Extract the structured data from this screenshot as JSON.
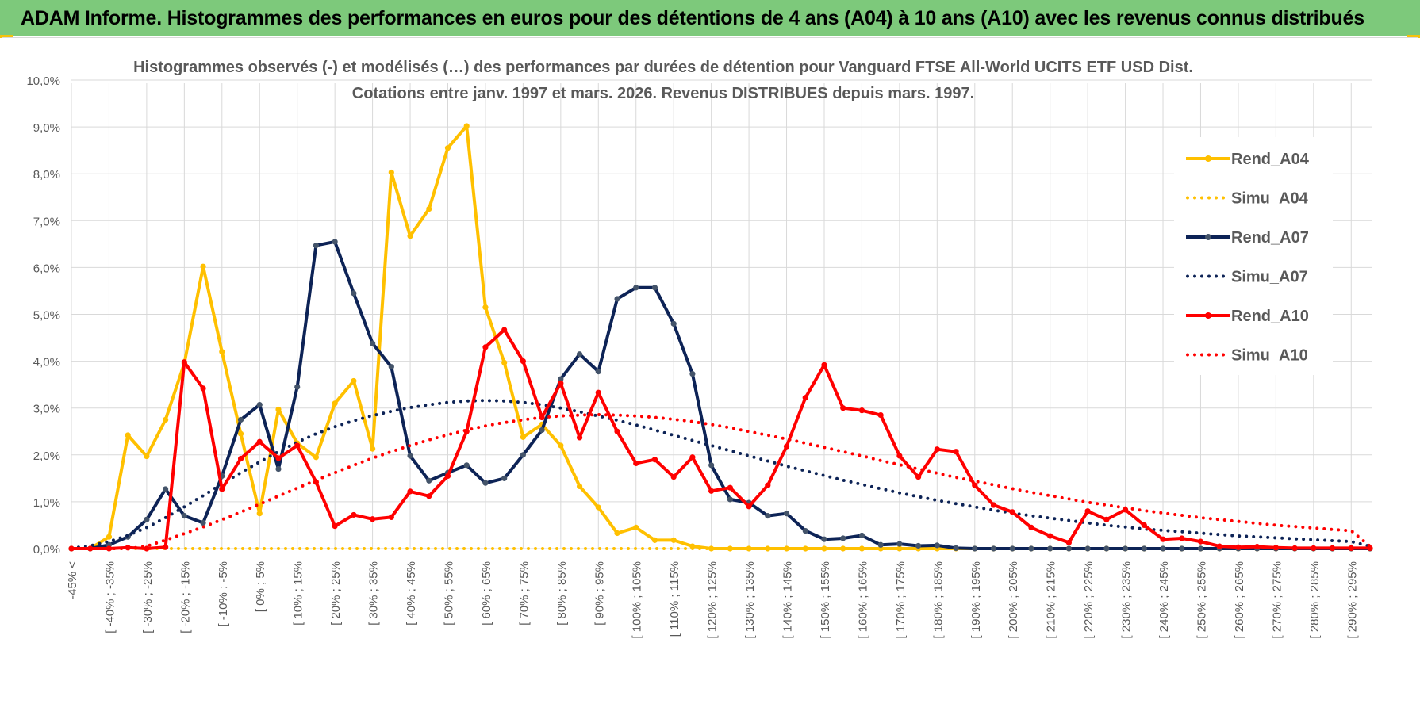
{
  "banner": {
    "title": "ADAM Informe. Histogrammes des performances en euros pour des détentions de 4 ans (A04) à 10 ans (A10) avec les revenus connus distribués"
  },
  "chart_data": {
    "type": "line",
    "title_line1": "Histogrammes observés (-) et modélisés (…) des performances par durées de détention pour Vanguard FTSE  All-World UCITS ETF USD Dist.",
    "title_line2": "Cotations entre janv. 1997 et mars. 2026. Revenus DISTRIBUES depuis mars. 1997.",
    "ylim": [
      0,
      10
    ],
    "ytick_values": [
      0,
      1,
      2,
      3,
      4,
      5,
      6,
      7,
      8,
      9,
      10
    ],
    "ytick_labels": [
      "0,0%",
      "1,0%",
      "2,0%",
      "3,0%",
      "4,0%",
      "5,0%",
      "6,0%",
      "7,0%",
      "8,0%",
      "9,0%",
      "10,0%"
    ],
    "x_labels": [
      "-45% <",
      "[ -40% ; -35%",
      "[ -30% ; -25%",
      "[ -20% ; -15%",
      "[ -10% ; -5%",
      "[ 0% ; 5%",
      "[ 10% ; 15%",
      "[ 20% ; 25%",
      "[ 30% ; 35%",
      "[ 40% ; 45%",
      "[ 50% ; 55%",
      "[ 60% ; 65%",
      "[ 70% ; 75%",
      "[ 80% ; 85%",
      "[ 90% ; 95%",
      "[ 100% ; 105%",
      "[ 110% ; 115%",
      "[ 120% ; 125%",
      "[ 130% ; 135%",
      "[ 140% ; 145%",
      "[ 150% ; 155%",
      "[ 160% ; 165%",
      "[ 170% ; 175%",
      "[ 180% ; 185%",
      "[ 190% ; 195%",
      "[ 200% ; 205%",
      "[ 210% ; 215%",
      "[ 220% ; 225%",
      "[ 230% ; 235%",
      "[ 240% ; 245%",
      "[ 250% ; 255%",
      "[ 260% ; 265%",
      "[ 270% ; 275%",
      "[ 280% ; 285%",
      "[ 290% ; 295%"
    ],
    "x_count": 70,
    "series": [
      {
        "name": "Rend_A04",
        "style": "solid",
        "color": "#ffc000",
        "values": [
          0,
          0,
          0.25,
          2.42,
          1.97,
          2.75,
          3.95,
          6.02,
          4.2,
          2.45,
          0.75,
          2.97,
          2.25,
          1.95,
          3.1,
          3.58,
          2.13,
          8.03,
          6.67,
          7.25,
          8.55,
          9.02,
          5.15,
          3.97,
          2.38,
          2.65,
          2.2,
          1.33,
          0.88,
          0.33,
          0.45,
          0.18,
          0.18,
          0.05,
          0,
          0,
          0,
          0,
          0,
          0,
          0,
          0,
          0,
          0,
          0,
          0,
          0,
          0,
          0,
          0,
          0,
          0,
          0,
          0,
          0,
          0,
          0,
          0,
          0,
          0,
          0,
          0,
          0,
          0,
          0,
          0,
          0,
          0,
          0,
          0
        ]
      },
      {
        "name": "Simu_A04",
        "style": "dotted",
        "color": "#ffc000",
        "values": [
          0,
          0,
          0,
          0,
          0,
          0,
          0,
          0,
          0,
          0,
          0,
          0,
          0,
          0,
          0,
          0,
          0,
          0,
          0,
          0,
          0,
          0,
          0,
          0,
          0,
          0,
          0,
          0,
          0,
          0,
          0,
          0,
          0,
          0,
          0,
          0,
          0,
          0,
          0,
          0,
          0,
          0,
          0,
          0,
          0,
          0,
          0,
          0,
          0,
          0,
          0,
          0,
          0,
          0,
          0,
          0,
          0,
          0,
          0,
          0,
          0,
          0,
          0,
          0,
          0,
          0,
          0,
          0,
          0,
          0
        ]
      },
      {
        "name": "Rend_A07",
        "style": "solid",
        "color": "#0d2356",
        "values": [
          0,
          0,
          0.08,
          0.25,
          0.62,
          1.27,
          0.7,
          0.55,
          1.55,
          2.75,
          3.07,
          1.7,
          3.45,
          6.47,
          6.55,
          5.45,
          4.38,
          3.88,
          1.98,
          1.45,
          1.62,
          1.78,
          1.4,
          1.5,
          2.0,
          2.53,
          3.62,
          4.15,
          3.78,
          5.33,
          5.57,
          5.57,
          4.8,
          3.73,
          1.78,
          1.05,
          0.98,
          0.7,
          0.75,
          0.38,
          0.2,
          0.22,
          0.28,
          0.08,
          0.1,
          0.06,
          0.07,
          0.01,
          0,
          0,
          0,
          0,
          0,
          0,
          0,
          0,
          0,
          0,
          0,
          0,
          0,
          0,
          0,
          0,
          0,
          0,
          0,
          0,
          0,
          0
        ]
      },
      {
        "name": "Simu_A07",
        "style": "dotted",
        "color": "#0d2356",
        "values": [
          0.01,
          0.06,
          0.15,
          0.28,
          0.45,
          0.66,
          0.89,
          1.13,
          1.38,
          1.62,
          1.85,
          2.07,
          2.27,
          2.45,
          2.6,
          2.73,
          2.84,
          2.93,
          3.01,
          3.07,
          3.12,
          3.15,
          3.16,
          3.15,
          3.12,
          3.07,
          3.0,
          2.92,
          2.83,
          2.74,
          2.64,
          2.53,
          2.42,
          2.31,
          2.2,
          2.09,
          1.98,
          1.87,
          1.76,
          1.66,
          1.56,
          1.46,
          1.37,
          1.28,
          1.19,
          1.11,
          1.03,
          0.96,
          0.89,
          0.82,
          0.76,
          0.7,
          0.65,
          0.6,
          0.55,
          0.5,
          0.46,
          0.42,
          0.39,
          0.36,
          0.33,
          0.3,
          0.27,
          0.25,
          0.23,
          0.21,
          0.19,
          0.17,
          0.15,
          0.05
        ]
      },
      {
        "name": "Rend_A10",
        "style": "solid",
        "color": "#ff0000",
        "values": [
          0,
          0,
          0,
          0.02,
          0,
          0.03,
          3.98,
          3.42,
          1.27,
          1.92,
          2.28,
          1.93,
          2.2,
          1.42,
          0.48,
          0.72,
          0.63,
          0.67,
          1.22,
          1.12,
          1.55,
          2.5,
          4.3,
          4.67,
          4.0,
          2.8,
          3.53,
          2.37,
          3.33,
          2.5,
          1.82,
          1.9,
          1.53,
          1.95,
          1.23,
          1.3,
          0.9,
          1.35,
          2.18,
          3.22,
          3.92,
          3.0,
          2.95,
          2.85,
          1.98,
          1.53,
          2.12,
          2.07,
          1.35,
          0.93,
          0.78,
          0.45,
          0.27,
          0.13,
          0.8,
          0.62,
          0.83,
          0.5,
          0.2,
          0.22,
          0.15,
          0.05,
          0.03,
          0.04,
          0.02,
          0.01,
          0.01,
          0.01,
          0.01,
          0.01
        ]
      },
      {
        "name": "Simu_A10",
        "style": "dotted",
        "color": "#ff0000",
        "values": [
          0,
          0,
          0,
          0,
          0.05,
          0.18,
          0.32,
          0.46,
          0.62,
          0.78,
          0.95,
          1.12,
          1.29,
          1.46,
          1.62,
          1.78,
          1.93,
          2.07,
          2.2,
          2.32,
          2.43,
          2.53,
          2.62,
          2.69,
          2.75,
          2.8,
          2.83,
          2.85,
          2.86,
          2.85,
          2.83,
          2.8,
          2.76,
          2.71,
          2.65,
          2.58,
          2.5,
          2.42,
          2.34,
          2.25,
          2.16,
          2.07,
          1.98,
          1.88,
          1.79,
          1.7,
          1.61,
          1.52,
          1.44,
          1.36,
          1.28,
          1.2,
          1.13,
          1.06,
          0.99,
          0.93,
          0.87,
          0.81,
          0.76,
          0.71,
          0.66,
          0.62,
          0.58,
          0.54,
          0.5,
          0.47,
          0.44,
          0.41,
          0.38,
          0.05
        ]
      }
    ],
    "legend": [
      "Rend_A04",
      "Simu_A04",
      "Rend_A07",
      "Simu_A07",
      "Rend_A10",
      "Simu_A10"
    ],
    "legend_position": "right",
    "grid": true
  }
}
